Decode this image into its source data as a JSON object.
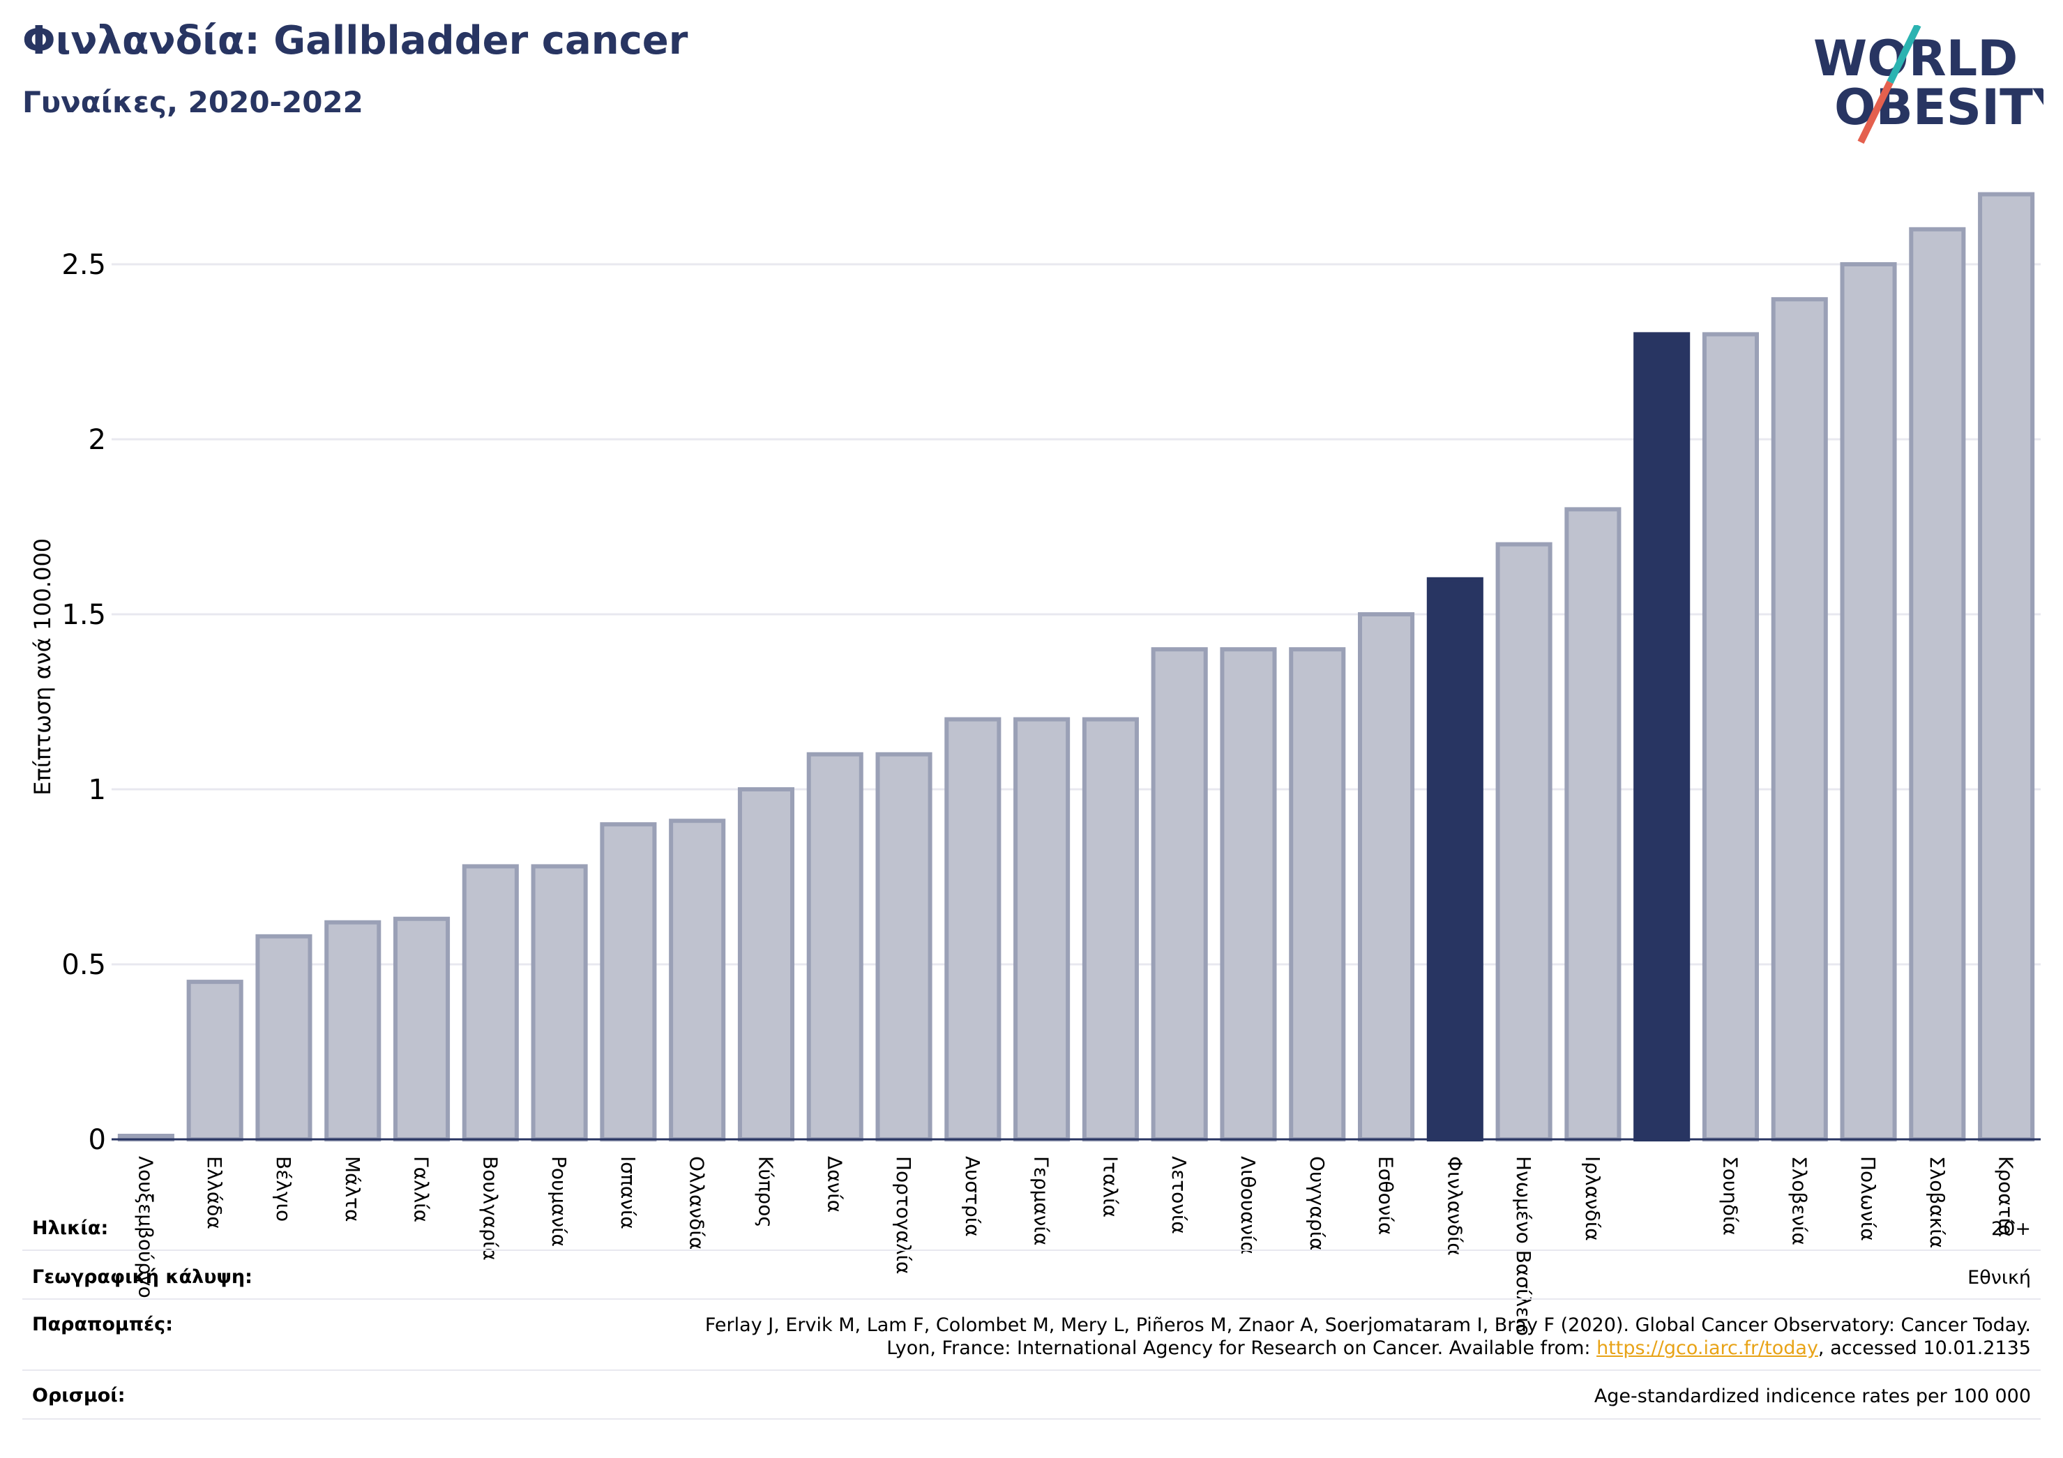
{
  "header": {
    "title": "Φινλανδία: Gallbladder cancer",
    "subtitle": "Γυναίκες, 2020-2022"
  },
  "logo": {
    "line1": "WORLD",
    "line2": "OBESITY",
    "colors": {
      "text": "#283562",
      "slash_top": "#2bb3b1",
      "slash_bottom": "#e4604e"
    }
  },
  "colors": {
    "bar": "#bfc2cf",
    "bar_stroke": "#9aa0b6",
    "highlight": "#283562",
    "grid": "#e8e8ef",
    "axis": "#283562"
  },
  "chart_data": {
    "type": "bar",
    "ylabel": "Επίπτωση ανά 100.000",
    "ylim": [
      0,
      2.7
    ],
    "yticks": [
      0,
      0.5,
      1,
      1.5,
      2,
      2.5
    ],
    "ytick_labels": [
      "0",
      "0.5",
      "1",
      "1.5",
      "2",
      "2.5"
    ],
    "grid": true,
    "categories": [
      "Λουξεμβούργο",
      "Ελλάδα",
      "Βέλγιο",
      "Μάλτα",
      "Γαλλία",
      "Βουλγαρία",
      "Ρουμανία",
      "Ισπανία",
      "Ολλανδία",
      "Κύπρος",
      "Δανία",
      "Πορτογαλία",
      "Αυστρία",
      "Γερμανία",
      "Ιταλία",
      "Λετονία",
      "Λιθουανία",
      "Ουγγαρία",
      "Εσθονία",
      "Φινλανδία",
      "Ηνωμένο Βασίλειο",
      "Ιρλανδία",
      "",
      "Σουηδία",
      "Σλοβενία",
      "Πολωνία",
      "Σλοβακία",
      "Κροατία"
    ],
    "values": [
      0.01,
      0.45,
      0.58,
      0.62,
      0.63,
      0.78,
      0.78,
      0.9,
      0.91,
      1.0,
      1.1,
      1.1,
      1.2,
      1.2,
      1.2,
      1.4,
      1.4,
      1.4,
      1.5,
      1.6,
      1.7,
      1.8,
      2.3,
      2.3,
      2.4,
      2.5,
      2.6,
      2.7
    ],
    "highlighted": [
      19,
      22
    ]
  },
  "info": {
    "age_label": "Ηλικία:",
    "age_value": "20+",
    "coverage_label": "Γεωγραφική κάλυψη:",
    "coverage_value": "Εθνική",
    "refs_label": "Παραπομπές:",
    "refs_line1": "Ferlay J, Ervik M, Lam F, Colombet M, Mery L, Piñeros M, Znaor A, Soerjomataram I, Bray F (2020). Global Cancer Observatory: Cancer Today.",
    "refs_line2_pre": "Lyon, France: International Agency for Research on Cancer. Available from: ",
    "refs_link": "https://gco.iarc.fr/today",
    "refs_line2_post": ", accessed 10.01.2135",
    "defs_label": "Ορισμοί:",
    "defs_value": "Age-standardized indicence rates per 100 000"
  }
}
